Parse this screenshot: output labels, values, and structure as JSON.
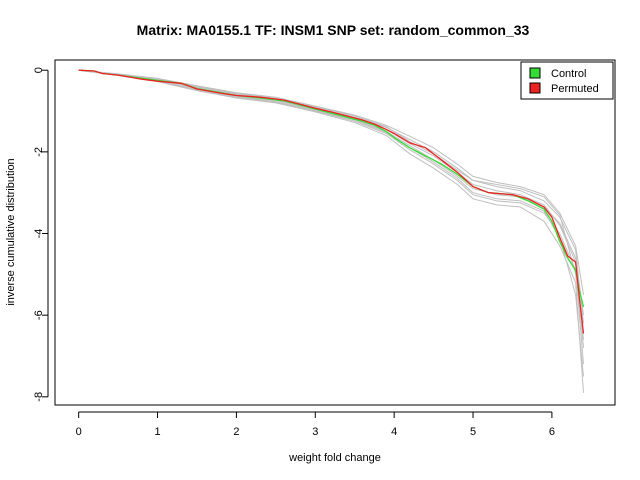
{
  "chart_data": {
    "type": "line",
    "title": "Matrix: MA0155.1 TF: INSM1 SNP set: random_common_33",
    "xlabel": "weight fold change",
    "ylabel": "inverse cumulative distribution",
    "xlim": [
      -0.3,
      6.8
    ],
    "ylim": [
      -8.2,
      0.25
    ],
    "x_ticks": [
      "0",
      "1",
      "2",
      "3",
      "4",
      "5",
      "6"
    ],
    "y_ticks": [
      "0",
      "-2",
      "-4",
      "-6",
      "-8"
    ],
    "legend": {
      "placement": "top-right",
      "entries": [
        "Control",
        "Permuted"
      ]
    },
    "colors": {
      "control": "#33dd33",
      "permuted": "#ee2222",
      "background_runs": "#bfbfbf"
    },
    "series": [
      {
        "name": "Control",
        "x": [
          0,
          0.2,
          0.3,
          0.5,
          0.8,
          1.0,
          1.3,
          1.5,
          1.8,
          2.0,
          2.3,
          2.6,
          2.8,
          3.0,
          3.2,
          3.4,
          3.6,
          3.75,
          3.9,
          4.0,
          4.2,
          4.4,
          4.6,
          4.8,
          5.0,
          5.2,
          5.5,
          5.7,
          5.9,
          6.0,
          6.1,
          6.2,
          6.3,
          6.35,
          6.4
        ],
        "y": [
          0,
          -0.02,
          -0.08,
          -0.12,
          -0.2,
          -0.25,
          -0.32,
          -0.45,
          -0.55,
          -0.62,
          -0.68,
          -0.75,
          -0.85,
          -0.95,
          -1.05,
          -1.15,
          -1.25,
          -1.35,
          -1.5,
          -1.65,
          -1.9,
          -2.1,
          -2.3,
          -2.55,
          -2.85,
          -3.0,
          -3.05,
          -3.2,
          -3.4,
          -3.7,
          -4.2,
          -4.6,
          -4.9,
          -5.4,
          -5.8
        ]
      },
      {
        "name": "Permuted",
        "x": [
          0,
          0.2,
          0.3,
          0.5,
          0.8,
          1.0,
          1.3,
          1.5,
          1.8,
          2.0,
          2.3,
          2.6,
          2.8,
          3.0,
          3.2,
          3.4,
          3.6,
          3.75,
          3.9,
          4.0,
          4.2,
          4.4,
          4.6,
          4.8,
          5.0,
          5.2,
          5.5,
          5.7,
          5.9,
          6.0,
          6.1,
          6.2,
          6.3,
          6.35,
          6.4
        ],
        "y": [
          0,
          -0.02,
          -0.08,
          -0.12,
          -0.22,
          -0.27,
          -0.32,
          -0.46,
          -0.56,
          -0.62,
          -0.66,
          -0.73,
          -0.83,
          -0.93,
          -1.02,
          -1.12,
          -1.22,
          -1.32,
          -1.45,
          -1.55,
          -1.78,
          -1.9,
          -2.2,
          -2.5,
          -2.85,
          -3.0,
          -3.05,
          -3.15,
          -3.35,
          -3.6,
          -4.1,
          -4.55,
          -4.7,
          -5.6,
          -6.45
        ]
      }
    ],
    "background_runs": [
      {
        "x": [
          0,
          0.5,
          1.0,
          1.5,
          2.0,
          2.5,
          3.0,
          3.5,
          3.9,
          4.2,
          4.5,
          4.8,
          5.0,
          5.3,
          5.6,
          5.9,
          6.1,
          6.3,
          6.4
        ],
        "y": [
          0,
          -0.1,
          -0.22,
          -0.4,
          -0.58,
          -0.7,
          -0.92,
          -1.15,
          -1.4,
          -1.7,
          -2.0,
          -2.4,
          -2.7,
          -2.85,
          -2.95,
          -3.2,
          -3.6,
          -4.4,
          -6.2
        ]
      },
      {
        "x": [
          0,
          0.5,
          1.0,
          1.5,
          2.0,
          2.5,
          3.0,
          3.5,
          3.9,
          4.2,
          4.5,
          4.8,
          5.0,
          5.3,
          5.6,
          5.9,
          6.1,
          6.3,
          6.4
        ],
        "y": [
          0,
          -0.12,
          -0.26,
          -0.48,
          -0.66,
          -0.78,
          -1.0,
          -1.25,
          -1.55,
          -1.95,
          -2.3,
          -2.7,
          -3.05,
          -3.2,
          -3.25,
          -3.5,
          -4.0,
          -4.9,
          -7.2
        ]
      },
      {
        "x": [
          0,
          0.5,
          1.0,
          1.5,
          2.0,
          2.5,
          3.0,
          3.5,
          3.9,
          4.2,
          4.5,
          4.8,
          5.0,
          5.3,
          5.6,
          5.9,
          6.1,
          6.3,
          6.4
        ],
        "y": [
          0,
          -0.09,
          -0.2,
          -0.38,
          -0.55,
          -0.66,
          -0.88,
          -1.1,
          -1.35,
          -1.62,
          -1.9,
          -2.3,
          -2.6,
          -2.75,
          -2.85,
          -3.05,
          -3.5,
          -4.3,
          -5.5
        ]
      },
      {
        "x": [
          0,
          0.5,
          1.0,
          1.5,
          2.0,
          2.5,
          3.0,
          3.5,
          3.9,
          4.2,
          4.5,
          4.8,
          5.0,
          5.3,
          5.6,
          5.9,
          6.1,
          6.3,
          6.4
        ],
        "y": [
          0,
          -0.13,
          -0.28,
          -0.5,
          -0.68,
          -0.8,
          -1.02,
          -1.28,
          -1.6,
          -2.05,
          -2.4,
          -2.8,
          -3.15,
          -3.3,
          -3.35,
          -3.7,
          -4.3,
          -5.2,
          -7.9
        ]
      },
      {
        "x": [
          0,
          0.5,
          1.0,
          1.5,
          2.0,
          2.5,
          3.0,
          3.5,
          3.9,
          4.2,
          4.5,
          4.8,
          5.0,
          5.3,
          5.6,
          5.9,
          6.1,
          6.3,
          6.4
        ],
        "y": [
          0,
          -0.1,
          -0.23,
          -0.43,
          -0.6,
          -0.72,
          -0.95,
          -1.18,
          -1.45,
          -1.8,
          -2.1,
          -2.5,
          -2.8,
          -2.95,
          -3.05,
          -3.3,
          -3.8,
          -4.7,
          -6.8
        ]
      },
      {
        "x": [
          0,
          0.5,
          1.0,
          1.5,
          2.0,
          2.5,
          3.0,
          3.5,
          3.9,
          4.2,
          4.5,
          4.8,
          5.0,
          5.3,
          5.6,
          5.9,
          6.1,
          6.3,
          6.4
        ],
        "y": [
          0,
          -0.11,
          -0.24,
          -0.44,
          -0.62,
          -0.74,
          -0.97,
          -1.2,
          -1.5,
          -1.85,
          -2.2,
          -2.6,
          -2.9,
          -3.05,
          -3.1,
          -3.35,
          -3.75,
          -4.6,
          -6.0
        ]
      },
      {
        "x": [
          0,
          0.5,
          1.0,
          1.5,
          2.0,
          2.5,
          3.0,
          3.5,
          3.9,
          4.2,
          4.5,
          4.8,
          5.0,
          5.3,
          5.6,
          5.9,
          6.1,
          6.3,
          6.4
        ],
        "y": [
          0,
          -0.1,
          -0.21,
          -0.41,
          -0.57,
          -0.69,
          -0.9,
          -1.12,
          -1.38,
          -1.75,
          -2.05,
          -2.45,
          -2.7,
          -2.8,
          -2.9,
          -3.1,
          -3.55,
          -5.0,
          -6.6
        ]
      },
      {
        "x": [
          0,
          0.5,
          1.0,
          1.5,
          2.0,
          2.5,
          3.0,
          3.5,
          3.9,
          4.2,
          4.5,
          4.8,
          5.0,
          5.3,
          5.6,
          5.9,
          6.1,
          6.3,
          6.4
        ],
        "y": [
          0,
          -0.12,
          -0.27,
          -0.47,
          -0.64,
          -0.77,
          -0.99,
          -1.22,
          -1.52,
          -1.9,
          -2.25,
          -2.65,
          -3.0,
          -3.15,
          -3.2,
          -3.45,
          -4.1,
          -5.5,
          -7.5
        ]
      }
    ]
  }
}
